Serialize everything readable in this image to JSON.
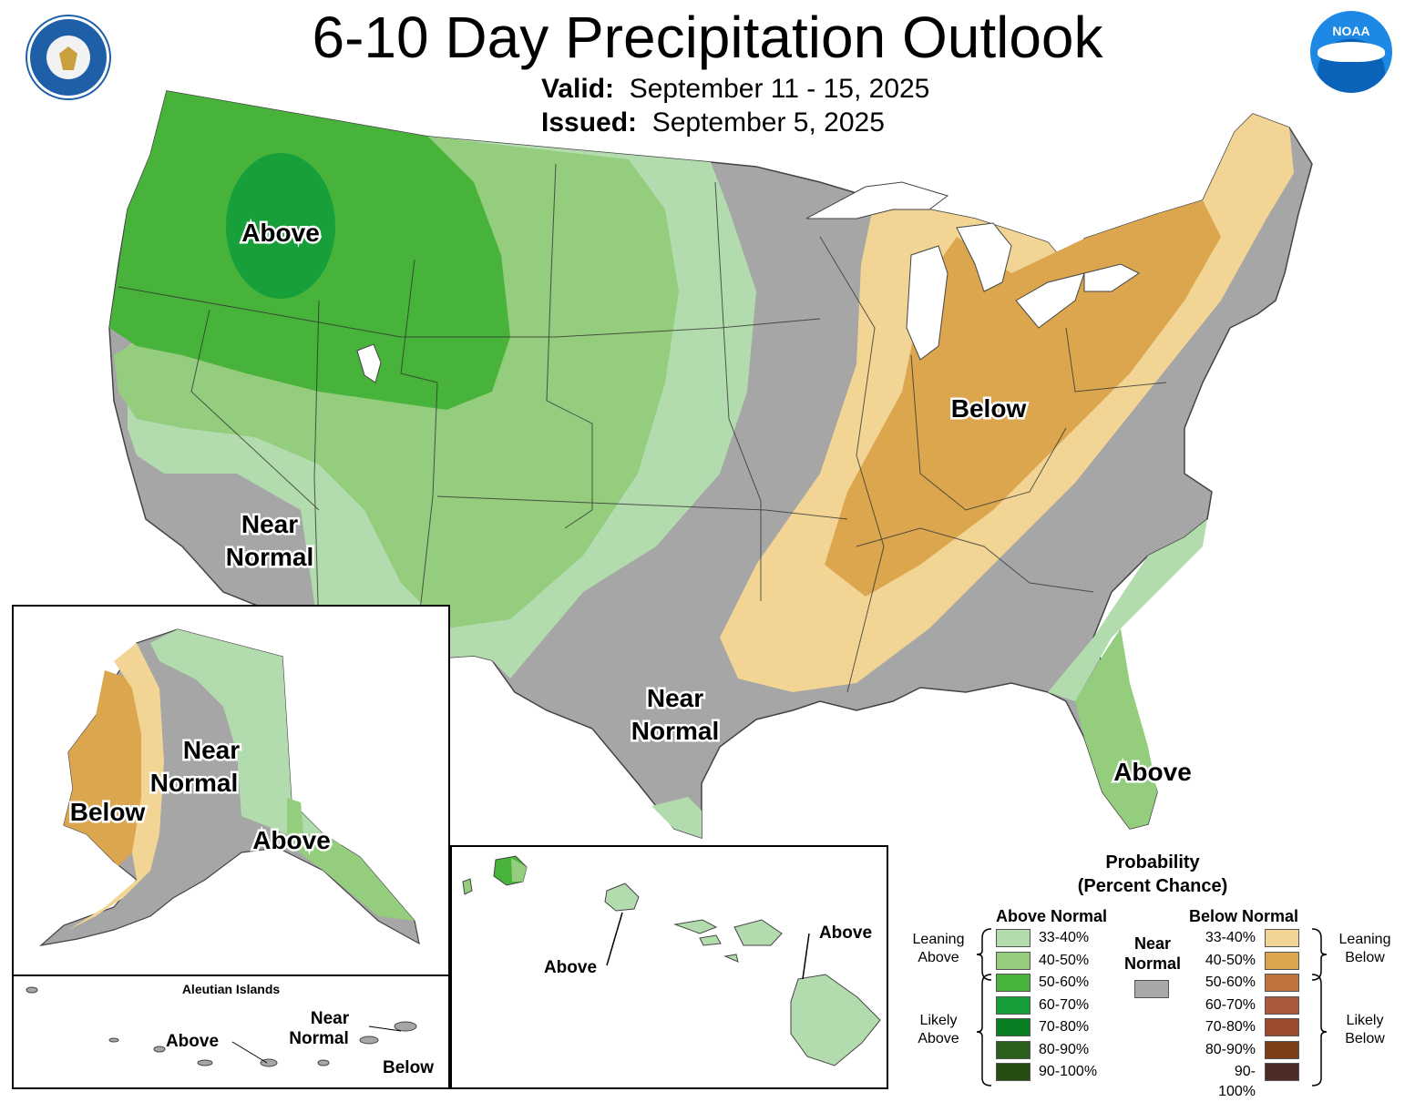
{
  "header": {
    "title": "6-10 Day Precipitation Outlook",
    "valid_label": "Valid:",
    "valid_value": "September 11 - 15, 2025",
    "issued_label": "Issued:",
    "issued_value": "September 5, 2025",
    "logo_noaa_text": "NOAA"
  },
  "map_labels": {
    "conus_nw": "Above",
    "conus_ca_line1": "Near",
    "conus_ca_line2": "Normal",
    "conus_tx_line1": "Near",
    "conus_tx_line2": "Normal",
    "conus_ohio": "Below",
    "conus_florida": "Above"
  },
  "alaska": {
    "label_near_line1": "Near",
    "label_near_line2": "Normal",
    "label_below": "Below",
    "label_above": "Above",
    "aleutian_title": "Aleutian Islands",
    "aleutian_above": "Above",
    "aleutian_near_line1": "Near",
    "aleutian_near_line2": "Normal",
    "aleutian_below": "Below"
  },
  "hawaii": {
    "label_left": "Above",
    "label_right": "Above"
  },
  "legend": {
    "title_line1": "Probability",
    "title_line2": "(Percent Chance)",
    "above_header": "Above Normal",
    "below_header": "Below Normal",
    "near_line1": "Near",
    "near_line2": "Normal",
    "leaning_above_1": "Leaning",
    "leaning_above_2": "Above",
    "likely_above_1": "Likely",
    "likely_above_2": "Above",
    "leaning_below_1": "Leaning",
    "leaning_below_2": "Below",
    "likely_below_1": "Likely",
    "likely_below_2": "Below",
    "above_rows": [
      {
        "range": "33-40%",
        "color": "#b3dcae"
      },
      {
        "range": "40-50%",
        "color": "#93cd7d"
      },
      {
        "range": "50-60%",
        "color": "#47b33a"
      },
      {
        "range": "60-70%",
        "color": "#17a03a"
      },
      {
        "range": "70-80%",
        "color": "#087f23"
      },
      {
        "range": "80-90%",
        "color": "#2a5f1c"
      },
      {
        "range": "90-100%",
        "color": "#284d12"
      }
    ],
    "below_rows": [
      {
        "range": "33-40%",
        "color": "#f2d594"
      },
      {
        "range": "40-50%",
        "color": "#dca64f"
      },
      {
        "range": "50-60%",
        "color": "#c0733c"
      },
      {
        "range": "60-70%",
        "color": "#a95a3e"
      },
      {
        "range": "70-80%",
        "color": "#9b4b30"
      },
      {
        "range": "80-90%",
        "color": "#7a3f16"
      },
      {
        "range": "90-100%",
        "color": "#4e2a26"
      }
    ],
    "near_color": "#a8a8a8"
  }
}
